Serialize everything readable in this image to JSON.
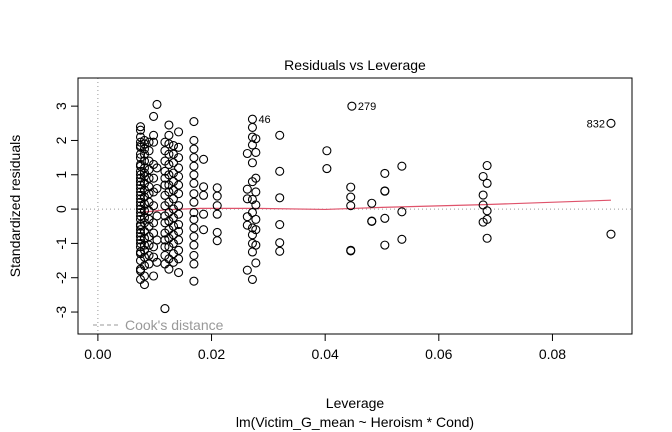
{
  "chart_data": {
    "type": "scatter",
    "title": "Residuals vs Leverage",
    "xlabel": "Leverage",
    "sublabel": "lm(Victim_G_mean ~ Heroism * Cond)",
    "ylabel": "Standardized residuals",
    "xlim": [
      -0.0035,
      0.094
    ],
    "ylim": [
      -3.64,
      3.82
    ],
    "xticks": [
      0.0,
      0.02,
      0.04,
      0.06,
      0.08
    ],
    "xtick_labels": [
      "0.00",
      "0.02",
      "0.04",
      "0.06",
      "0.08"
    ],
    "yticks": [
      -3,
      -2,
      -1,
      0,
      1,
      2,
      3
    ],
    "ytick_labels": [
      "-3",
      "-2",
      "-1",
      "0",
      "1",
      "2",
      "3"
    ],
    "legend": {
      "label": "Cook's distance",
      "placement": "bottom-left"
    },
    "colors": {
      "points": "#000000",
      "smooth": "#DF536B",
      "reference": "#999999"
    },
    "columns": [
      {
        "leverage": 0.0075,
        "residuals": [
          2.4,
          2.3,
          2.1,
          1.95,
          1.85,
          1.8,
          1.6,
          1.5,
          1.3,
          1.25,
          1.1,
          1.0,
          0.9,
          0.8,
          0.7,
          0.6,
          0.5,
          0.4,
          0.3,
          0.2,
          0.1,
          0.0,
          -0.1,
          -0.2,
          -0.3,
          -0.45,
          -0.5,
          -0.6,
          -0.7,
          -0.8,
          -0.9,
          -1.0,
          -1.1,
          -1.25,
          -1.3,
          -1.5,
          -1.75,
          -1.8,
          -2.05
        ]
      },
      {
        "leverage": 0.0082,
        "residuals": [
          2.0,
          1.9,
          1.75,
          1.6,
          1.4,
          1.2,
          1.05,
          0.95,
          0.75,
          0.55,
          0.35,
          0.15,
          -0.05,
          -0.25,
          -0.4,
          -0.65,
          -0.85,
          -1.05,
          -1.2,
          -1.4,
          -1.65,
          -1.95,
          -2.2
        ]
      },
      {
        "leverage": 0.009,
        "residuals": [
          1.95,
          1.7,
          1.4,
          1.15,
          0.9,
          0.65,
          0.45,
          0.2,
          -0.05,
          -0.3,
          -0.5,
          -0.8,
          -1.05,
          -1.35,
          -1.6
        ]
      },
      {
        "leverage": 0.0098,
        "residuals": [
          2.7,
          2.15,
          1.95,
          1.3,
          0.9,
          0.5,
          0.1,
          -0.4,
          -0.7,
          -1.1,
          -1.4,
          -1.95
        ]
      },
      {
        "leverage": 0.0104,
        "residuals": [
          3.05,
          1.2,
          0.6,
          -0.2,
          -0.9,
          -1.55
        ]
      },
      {
        "leverage": 0.0118,
        "residuals": [
          1.95,
          1.7,
          1.4,
          1.1,
          0.9,
          0.7,
          0.4,
          0.1,
          -0.2,
          -0.4,
          -0.7,
          -0.9,
          -1.1,
          -1.35,
          -1.6,
          -2.9
        ]
      },
      {
        "leverage": 0.0125,
        "residuals": [
          2.45,
          2.15,
          1.9,
          1.6,
          1.3,
          1.0,
          0.7,
          0.5,
          0.2,
          -0.1,
          -0.35,
          -0.6,
          -0.85,
          -1.1,
          -1.45,
          -1.75
        ]
      },
      {
        "leverage": 0.0133,
        "residuals": [
          1.85,
          1.6,
          1.35,
          1.05,
          0.8,
          0.55,
          0.3,
          0.0,
          -0.25,
          -0.5,
          -0.75,
          -1.0,
          -1.3,
          -1.55
        ]
      },
      {
        "leverage": 0.0142,
        "residuals": [
          2.25,
          1.8,
          1.5,
          1.2,
          0.95,
          0.7,
          0.45,
          0.1,
          -0.15,
          -0.45,
          -0.65,
          -0.9,
          -1.2,
          -1.45,
          -1.85
        ]
      },
      {
        "leverage": 0.0169,
        "residuals": [
          2.55,
          2.0,
          1.75,
          1.5,
          1.25,
          1.0,
          0.75,
          0.45,
          0.2,
          -0.1,
          -0.3,
          -0.55,
          -0.8,
          -1.05,
          -1.35,
          -1.6,
          -2.1
        ]
      },
      {
        "leverage": 0.0186,
        "residuals": [
          1.45,
          0.65,
          0.4,
          -0.15,
          -0.6
        ]
      },
      {
        "leverage": 0.021,
        "residuals": [
          0.62,
          0.38,
          0.1,
          -0.15,
          -0.68,
          -0.92
        ]
      },
      {
        "leverage": 0.0263,
        "residuals": [
          1.62,
          0.58,
          0.3,
          -0.22,
          -0.47,
          -1.78
        ]
      },
      {
        "leverage": 0.0272,
        "residuals": [
          2.62,
          2.38,
          2.1,
          1.87,
          1.35,
          0.8,
          0.28,
          -0.1,
          -0.55,
          -0.75,
          -1.0,
          -1.25,
          -2.05
        ]
      },
      {
        "leverage": 0.0278,
        "residuals": [
          2.05,
          1.65,
          0.9,
          0.5,
          0.12,
          -0.3,
          -0.6,
          -1.05,
          -1.57
        ]
      },
      {
        "leverage": 0.032,
        "residuals": [
          2.15,
          1.1,
          0.33,
          -0.45,
          -0.98,
          -1.23
        ]
      },
      {
        "leverage": 0.0403,
        "residuals": [
          1.7,
          1.18
        ]
      },
      {
        "leverage": 0.0445,
        "residuals": [
          0.64,
          0.35,
          0.1,
          -1.22,
          -1.2
        ]
      },
      {
        "leverage": 0.0447,
        "residuals": [
          3.0
        ]
      },
      {
        "leverage": 0.0482,
        "residuals": [
          0.17,
          -0.35,
          -0.36
        ]
      },
      {
        "leverage": 0.0505,
        "residuals": [
          1.04,
          0.53,
          0.52,
          -0.27,
          -1.05
        ]
      },
      {
        "leverage": 0.0535,
        "residuals": [
          1.25,
          -0.08,
          -0.88
        ]
      },
      {
        "leverage": 0.0678,
        "residuals": [
          0.95,
          0.41,
          0.12,
          -0.38
        ]
      },
      {
        "leverage": 0.0685,
        "residuals": [
          1.27,
          0.75,
          -0.05,
          -0.3,
          -0.85
        ]
      },
      {
        "leverage": 0.0903,
        "residuals": [
          2.5,
          -0.73
        ]
      }
    ],
    "labeled_points": [
      {
        "label": "46",
        "leverage": 0.0272,
        "residual": 2.62,
        "side": "right"
      },
      {
        "label": "279",
        "leverage": 0.0447,
        "residual": 3.0,
        "side": "right"
      },
      {
        "label": "832",
        "leverage": 0.0903,
        "residual": 2.5,
        "side": "left"
      }
    ],
    "smooth_line": {
      "x": [
        0.0075,
        0.012,
        0.018,
        0.028,
        0.04,
        0.05,
        0.068,
        0.0903
      ],
      "y": [
        -0.1,
        -0.02,
        0.02,
        0.02,
        -0.01,
        0.05,
        0.13,
        0.26
      ]
    }
  }
}
